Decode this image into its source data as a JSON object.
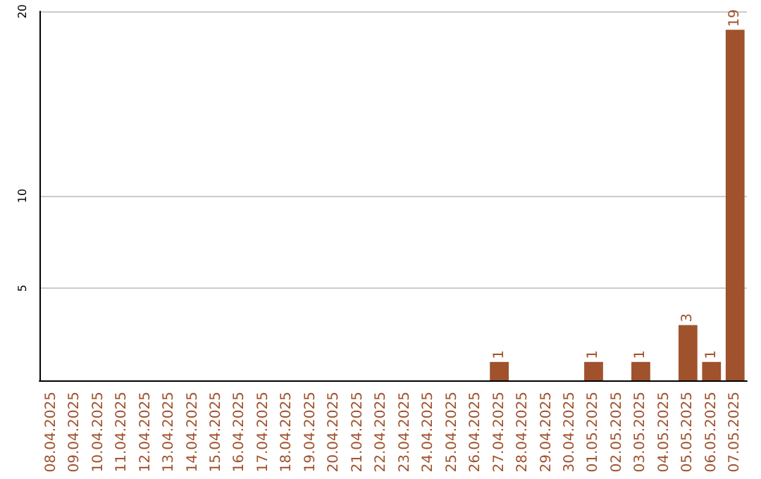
{
  "chart_data": {
    "type": "bar",
    "categories": [
      "08.04.2025",
      "09.04.2025",
      "10.04.2025",
      "11.04.2025",
      "12.04.2025",
      "13.04.2025",
      "14.04.2025",
      "15.04.2025",
      "16.04.2025",
      "17.04.2025",
      "18.04.2025",
      "19.04.2025",
      "20.04.2025",
      "21.04.2025",
      "22.04.2025",
      "23.04.2025",
      "24.04.2025",
      "25.04.2025",
      "26.04.2025",
      "27.04.2025",
      "28.04.2025",
      "29.04.2025",
      "30.04.2025",
      "01.05.2025",
      "02.05.2025",
      "03.05.2025",
      "04.05.2025",
      "05.05.2025",
      "06.05.2025",
      "07.05.2025"
    ],
    "values": [
      0,
      0,
      0,
      0,
      0,
      0,
      0,
      0,
      0,
      0,
      0,
      0,
      0,
      0,
      0,
      0,
      0,
      0,
      0,
      1,
      0,
      0,
      0,
      1,
      0,
      1,
      0,
      3,
      1,
      19
    ],
    "value_labels": [
      null,
      null,
      null,
      null,
      null,
      null,
      null,
      null,
      null,
      null,
      null,
      null,
      null,
      null,
      null,
      null,
      null,
      null,
      null,
      "1",
      null,
      null,
      null,
      "1",
      null,
      "1",
      null,
      "3",
      "1",
      "19"
    ],
    "color": "#a0522d",
    "ylim": [
      0,
      20
    ],
    "yticks": [
      5,
      10,
      20
    ],
    "grid": "y"
  }
}
